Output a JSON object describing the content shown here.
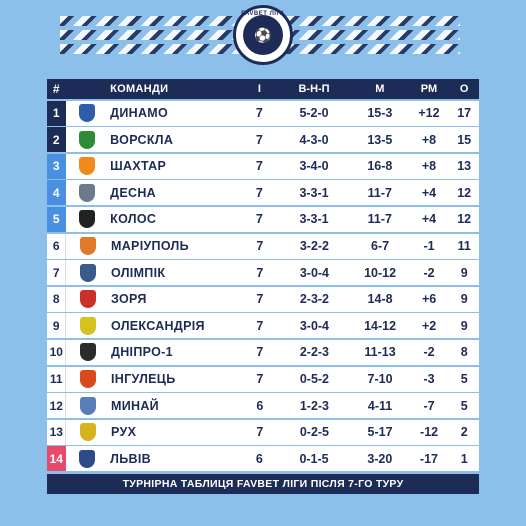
{
  "logo": {
    "text": "FAVBET ЛІГА"
  },
  "header": {
    "rank": "#",
    "team": "КОМАНДИ",
    "gp": "І",
    "wdl": "В-Н-П",
    "goals": "М",
    "diff": "РМ",
    "pts": "О"
  },
  "rows": [
    {
      "rank": "1",
      "team": "ДИНАМО",
      "gp": "7",
      "wdl": "5-2-0",
      "goals": "15-3",
      "diff": "+12",
      "pts": "17",
      "rank_color": "#1d2b57",
      "crest_color": "#2f5ea8"
    },
    {
      "rank": "2",
      "team": "ВОРСКЛА",
      "gp": "7",
      "wdl": "4-3-0",
      "goals": "13-5",
      "diff": "+8",
      "pts": "15",
      "rank_color": "#1d2b57",
      "crest_color": "#2e8b3a"
    },
    {
      "rank": "3",
      "team": "ШАХТАР",
      "gp": "7",
      "wdl": "3-4-0",
      "goals": "16-8",
      "diff": "+8",
      "pts": "13",
      "rank_color": "#4a90e2",
      "crest_color": "#f08a1c"
    },
    {
      "rank": "4",
      "team": "ДЕСНА",
      "gp": "7",
      "wdl": "3-3-1",
      "goals": "11-7",
      "diff": "+4",
      "pts": "12",
      "rank_color": "#4a90e2",
      "crest_color": "#6b7b8c"
    },
    {
      "rank": "5",
      "team": "КОЛОС",
      "gp": "7",
      "wdl": "3-3-1",
      "goals": "11-7",
      "diff": "+4",
      "pts": "12",
      "rank_color": "#4a90e2",
      "crest_color": "#222222"
    },
    {
      "rank": "6",
      "team": "МАРІУПОЛЬ",
      "gp": "7",
      "wdl": "3-2-2",
      "goals": "6-7",
      "diff": "-1",
      "pts": "11",
      "rank_color": "#ffffff",
      "crest_color": "#e07b2a"
    },
    {
      "rank": "7",
      "team": "ОЛІМПІК",
      "gp": "7",
      "wdl": "3-0-4",
      "goals": "10-12",
      "diff": "-2",
      "pts": "9",
      "rank_color": "#ffffff",
      "crest_color": "#3a5a8c"
    },
    {
      "rank": "8",
      "team": "ЗОРЯ",
      "gp": "7",
      "wdl": "2-3-2",
      "goals": "14-8",
      "diff": "+6",
      "pts": "9",
      "rank_color": "#ffffff",
      "crest_color": "#c8302a"
    },
    {
      "rank": "9",
      "team": "ОЛЕКСАНДРІЯ",
      "gp": "7",
      "wdl": "3-0-4",
      "goals": "14-12",
      "diff": "+2",
      "pts": "9",
      "rank_color": "#ffffff",
      "crest_color": "#d6c21e"
    },
    {
      "rank": "10",
      "team": "ДНІПРО-1",
      "gp": "7",
      "wdl": "2-2-3",
      "goals": "11-13",
      "diff": "-2",
      "pts": "8",
      "rank_color": "#ffffff",
      "crest_color": "#2b2b2b"
    },
    {
      "rank": "11",
      "team": "ІНГУЛЕЦЬ",
      "gp": "7",
      "wdl": "0-5-2",
      "goals": "7-10",
      "diff": "-3",
      "pts": "5",
      "rank_color": "#ffffff",
      "crest_color": "#d84a1c"
    },
    {
      "rank": "12",
      "team": "МИНАЙ",
      "gp": "6",
      "wdl": "1-2-3",
      "goals": "4-11",
      "diff": "-7",
      "pts": "5",
      "rank_color": "#ffffff",
      "crest_color": "#5a7fb8"
    },
    {
      "rank": "13",
      "team": "РУХ",
      "gp": "7",
      "wdl": "0-2-5",
      "goals": "5-17",
      "diff": "-12",
      "pts": "2",
      "rank_color": "#ffffff",
      "crest_color": "#d6b21e"
    },
    {
      "rank": "14",
      "team": "ЛЬВІВ",
      "gp": "6",
      "wdl": "0-1-5",
      "goals": "3-20",
      "diff": "-17",
      "pts": "1",
      "rank_color": "#e84a6a",
      "crest_color": "#2d4a8a"
    }
  ],
  "footer": {
    "caption": "ТУРНІРНА ТАБЛИЦЯ FAVBET ЛІГИ ПІСЛЯ 7-ГО ТУРУ"
  }
}
